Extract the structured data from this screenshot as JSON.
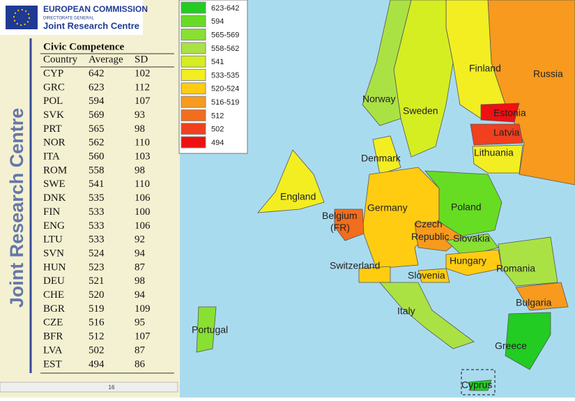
{
  "header": {
    "org": "EUROPEAN COMMISSION",
    "sub": "DIRECTORATE GENERAL",
    "unit": "Joint Research Centre"
  },
  "sidebar": "Joint Research Centre",
  "table": {
    "title": "Civic Competence",
    "columns": [
      "Country",
      "Average",
      "SD"
    ],
    "rows": [
      [
        "CYP",
        642,
        102
      ],
      [
        "GRC",
        623,
        112
      ],
      [
        "POL",
        594,
        107
      ],
      [
        "SVK",
        569,
        93
      ],
      [
        "PRT",
        565,
        98
      ],
      [
        "NOR",
        562,
        110
      ],
      [
        "ITA",
        560,
        103
      ],
      [
        "ROM",
        558,
        98
      ],
      [
        "SWE",
        541,
        110
      ],
      [
        "DNK",
        535,
        106
      ],
      [
        "FIN",
        533,
        100
      ],
      [
        "ENG",
        533,
        106
      ],
      [
        "LTU",
        533,
        92
      ],
      [
        "SVN",
        524,
        94
      ],
      [
        "HUN",
        523,
        87
      ],
      [
        "DEU",
        521,
        98
      ],
      [
        "CHE",
        520,
        94
      ],
      [
        "BGR",
        519,
        109
      ],
      [
        "CZE",
        516,
        95
      ],
      [
        "BFR",
        512,
        107
      ],
      [
        "LVA",
        502,
        87
      ],
      [
        "EST",
        494,
        86
      ]
    ]
  },
  "page_number": 16,
  "legend": [
    {
      "label": "623-642",
      "color": "#22cc22"
    },
    {
      "label": "594",
      "color": "#66dd22"
    },
    {
      "label": "565-569",
      "color": "#88e033"
    },
    {
      "label": "558-562",
      "color": "#aae244"
    },
    {
      "label": "541",
      "color": "#d4ee22"
    },
    {
      "label": "533-535",
      "color": "#f2ee22"
    },
    {
      "label": "520-524",
      "color": "#ffcc11"
    },
    {
      "label": "516-519",
      "color": "#f79a1e"
    },
    {
      "label": "512",
      "color": "#f26d1d"
    },
    {
      "label": "502",
      "color": "#f0401e"
    },
    {
      "label": "494",
      "color": "#ee1111"
    }
  ],
  "map": {
    "labels": [
      "Finland",
      "Russia",
      "Norway",
      "Sweden",
      "Estonia",
      "Latvia",
      "Lithuania",
      "Denmark",
      "England",
      "Germany",
      "Poland",
      "Belgium (FR)",
      "Czech Republic",
      "Slovakia",
      "Hungary",
      "Romania",
      "Switzerland",
      "Slovenia",
      "Bulgaria",
      "Italy",
      "Portugal",
      "Greece",
      "Cyprus"
    ]
  }
}
